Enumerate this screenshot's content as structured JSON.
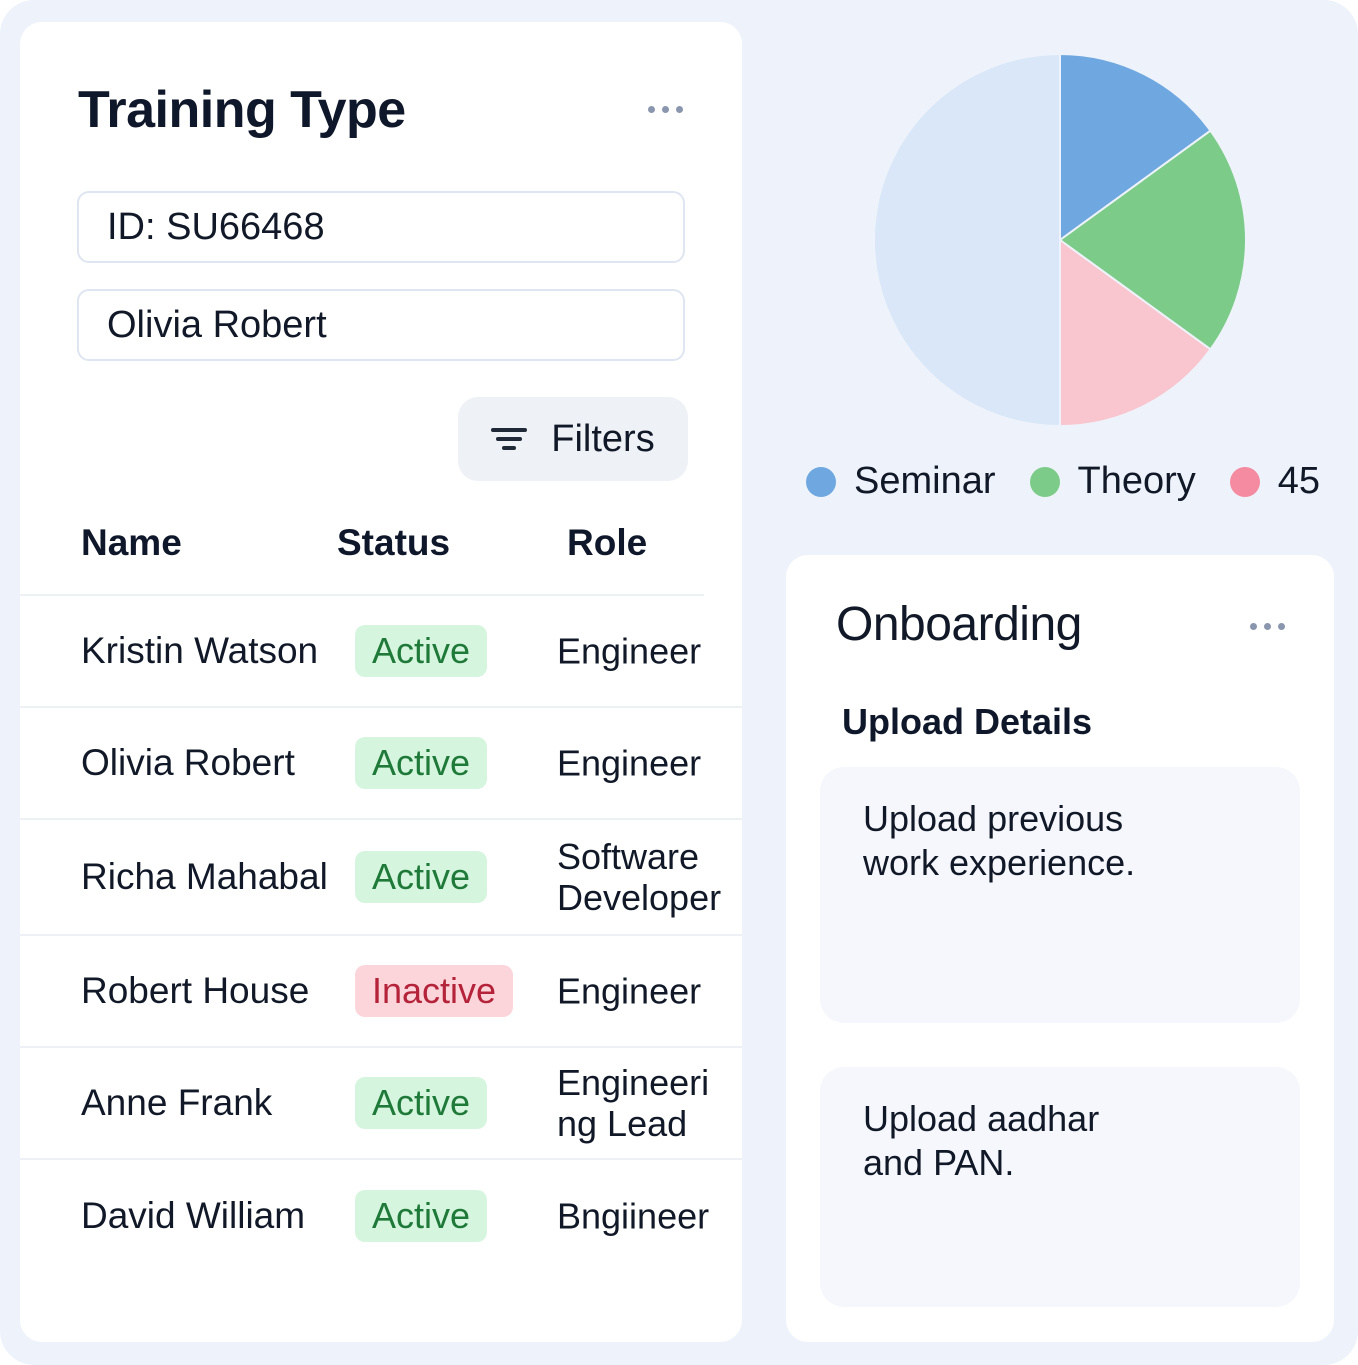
{
  "training": {
    "title": "Training Type",
    "id_field": "ID: SU66468",
    "name_field": "Olivia Robert",
    "filters_label": "Filters",
    "columns": {
      "name": "Name",
      "status": "Status",
      "role": "Role"
    },
    "rows": [
      {
        "name": "Kristin Watson",
        "status": "Active",
        "role": "Engineer"
      },
      {
        "name": "Olivia Robert",
        "status": "Active",
        "role": "Engineer"
      },
      {
        "name": "Richa Mahabal",
        "status": "Active",
        "role": "Software Developer"
      },
      {
        "name": "Robert House",
        "status": "Inactive",
        "role": "Engineer"
      },
      {
        "name": "Anne Frank",
        "status": "Active",
        "role": "Engineering Lead"
      },
      {
        "name": "David William",
        "status": "Active",
        "role": "Bngiineer"
      }
    ]
  },
  "chart_data": {
    "type": "pie",
    "slices": [
      {
        "label": "Seminar",
        "value": 15,
        "color": "#6fa8e0"
      },
      {
        "label": "Theory",
        "value": 20,
        "color": "#7dcb89"
      },
      {
        "label": "45",
        "value": 15,
        "color": "#f9c5ce"
      },
      {
        "label": "",
        "value": 50,
        "color": "#d9e7f8"
      }
    ],
    "legend": [
      {
        "label": "Seminar",
        "color": "#6fa8e0"
      },
      {
        "label": "Theory",
        "color": "#7dcb89"
      },
      {
        "label": "45",
        "color": "#f48ba0"
      }
    ],
    "legend_position": "bottom"
  },
  "onboarding": {
    "title": "Onboarding",
    "subheading": "Upload Details",
    "tasks": [
      {
        "text": "Upload previous work experience."
      },
      {
        "text": "Upload aadhar and PAN."
      }
    ]
  },
  "colors": {
    "background": "#eef3fb",
    "card": "#ffffff",
    "active_badge_bg": "#d6f5de",
    "active_badge_text": "#1f7a3a",
    "inactive_badge_bg": "#fbd5da",
    "inactive_badge_text": "#b4233a"
  }
}
